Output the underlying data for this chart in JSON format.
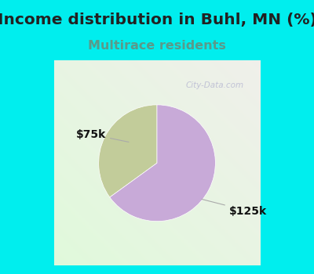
{
  "title": "Income distribution in Buhl, MN (%)",
  "subtitle": "Multirace residents",
  "title_bg_color": "#00EEEE",
  "chart_bg_top_right": "#e8ede0",
  "chart_bg_bottom_left": "#d0eede",
  "slices": [
    {
      "label": "$75k",
      "value": 35,
      "color": "#c2cc9a"
    },
    {
      "label": "$125k",
      "value": 65,
      "color": "#c8aad8"
    }
  ],
  "title_fontsize": 14.5,
  "subtitle_fontsize": 11.5,
  "subtitle_color": "#5a9a8a",
  "label_fontsize": 10,
  "watermark": "City-Data.com",
  "startangle": 90,
  "border_color": "#00EEEE",
  "border_width": 6
}
